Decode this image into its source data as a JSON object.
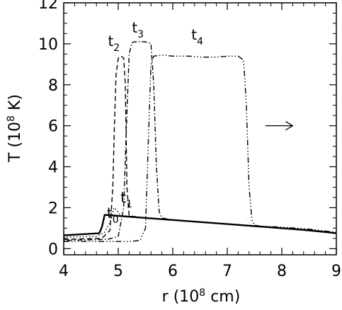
{
  "chart_data": {
    "type": "line",
    "xlabel": {
      "pre": "r (10",
      "sup": "8",
      "post": " cm)"
    },
    "ylabel": {
      "pre": "T (10",
      "sup": "8",
      "post": " K)"
    },
    "xlim": [
      4,
      9
    ],
    "ylim": [
      -0.3,
      12
    ],
    "xticks": [
      4,
      5,
      6,
      7,
      8,
      9
    ],
    "yticks": [
      0,
      2,
      4,
      6,
      8,
      10,
      12
    ],
    "x_minor_step": 0.2,
    "y_minor_step": 0.5,
    "annotation_arrow": {
      "from": [
        7.7,
        6.0
      ],
      "to": [
        8.2,
        6.0
      ],
      "direction": "right"
    },
    "series": [
      {
        "name": "t0",
        "label": {
          "base": "t",
          "sub": "0",
          "pos": [
            4.9,
            1.5
          ]
        },
        "style": "solid",
        "x": [
          4.0,
          4.65,
          4.7,
          4.75,
          5.0,
          5.5,
          6.0,
          6.5,
          7.0,
          7.5,
          8.0,
          8.5,
          9.0
        ],
        "y": [
          0.65,
          0.75,
          1.05,
          1.65,
          1.6,
          1.5,
          1.4,
          1.3,
          1.2,
          1.1,
          1.0,
          0.9,
          0.75
        ]
      },
      {
        "name": "t1",
        "label": {
          "base": "t",
          "sub": "1",
          "pos": [
            5.15,
            2.25
          ]
        },
        "style": "dotted",
        "x": [
          4.0,
          4.6,
          4.75,
          4.85,
          4.9,
          4.92,
          4.97,
          5.0,
          5.05,
          5.1,
          5.5,
          6.0,
          7.0,
          8.0,
          9.0
        ],
        "y": [
          0.55,
          0.6,
          0.8,
          1.3,
          1.75,
          2.0,
          1.9,
          1.75,
          1.65,
          1.6,
          1.5,
          1.4,
          1.2,
          1.0,
          0.75
        ]
      },
      {
        "name": "t2",
        "label": {
          "base": "t",
          "sub": "2",
          "pos": [
            4.92,
            9.9
          ]
        },
        "style": "dashed",
        "x": [
          4.0,
          4.7,
          4.85,
          4.9,
          4.93,
          4.96,
          5.0,
          5.05,
          5.1,
          5.13,
          5.16,
          5.2,
          5.5,
          6.0,
          7.0,
          8.0,
          9.0
        ],
        "y": [
          0.45,
          0.5,
          0.9,
          3.0,
          6.0,
          8.5,
          9.3,
          9.4,
          9.3,
          8.0,
          3.0,
          1.6,
          1.5,
          1.4,
          1.2,
          1.0,
          0.75
        ]
      },
      {
        "name": "t3",
        "label": {
          "base": "t",
          "sub": "3",
          "pos": [
            5.36,
            10.55
          ]
        },
        "style": "dashdot",
        "x": [
          4.0,
          4.8,
          5.0,
          5.1,
          5.15,
          5.2,
          5.25,
          5.3,
          5.5,
          5.6,
          5.65,
          5.7,
          5.75,
          5.8,
          6.0,
          7.0,
          8.0,
          9.0
        ],
        "y": [
          0.4,
          0.45,
          0.6,
          2.0,
          6.0,
          9.5,
          10.05,
          10.1,
          10.1,
          10.0,
          8.0,
          4.0,
          1.8,
          1.5,
          1.4,
          1.2,
          1.0,
          0.75
        ]
      },
      {
        "name": "t4",
        "label": {
          "base": "t",
          "sub": "4",
          "pos": [
            6.45,
            10.2
          ]
        },
        "style": "dashdotdotdot",
        "x": [
          4.0,
          5.2,
          5.4,
          5.5,
          5.55,
          5.6,
          5.65,
          5.8,
          6.0,
          6.3,
          6.5,
          6.8,
          7.0,
          7.2,
          7.3,
          7.35,
          7.4,
          7.45,
          7.5,
          7.6,
          8.0,
          8.5,
          9.0
        ],
        "y": [
          0.35,
          0.35,
          0.4,
          1.0,
          5.0,
          9.0,
          9.4,
          9.45,
          9.4,
          9.4,
          9.35,
          9.35,
          9.4,
          9.4,
          9.2,
          7.0,
          3.0,
          1.4,
          1.15,
          1.1,
          1.05,
          0.95,
          0.8
        ]
      }
    ]
  }
}
